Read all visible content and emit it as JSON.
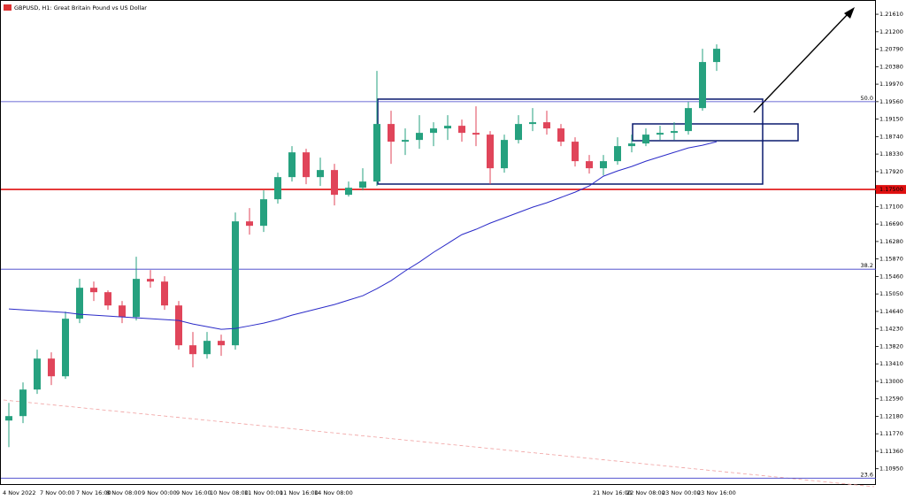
{
  "chart_data": {
    "type": "candlestick",
    "title": "GBPUSD, H1:  Great Britain Pound vs US Dollar",
    "ylim": [
      1.1057,
      1.2184
    ],
    "yticks": [
      {
        "value": 1.2161,
        "label": "1.21610"
      },
      {
        "value": 1.212,
        "label": "1.21200"
      },
      {
        "value": 1.2079,
        "label": "1.20790"
      },
      {
        "value": 1.2038,
        "label": "1.20380"
      },
      {
        "value": 1.1997,
        "label": "1.19970"
      },
      {
        "value": 1.1956,
        "label": "1.19560"
      },
      {
        "value": 1.1915,
        "label": "1.19150"
      },
      {
        "value": 1.1874,
        "label": "1.18740"
      },
      {
        "value": 1.1833,
        "label": "1.18330"
      },
      {
        "value": 1.1792,
        "label": "1.17920"
      },
      {
        "value": 1.171,
        "label": "1.17100"
      },
      {
        "value": 1.1669,
        "label": "1.16690"
      },
      {
        "value": 1.1628,
        "label": "1.16280"
      },
      {
        "value": 1.1587,
        "label": "1.15870"
      },
      {
        "value": 1.1546,
        "label": "1.15460"
      },
      {
        "value": 1.1505,
        "label": "1.15050"
      },
      {
        "value": 1.1464,
        "label": "1.14640"
      },
      {
        "value": 1.1423,
        "label": "1.14230"
      },
      {
        "value": 1.1382,
        "label": "1.13820"
      },
      {
        "value": 1.1341,
        "label": "1.13410"
      },
      {
        "value": 1.13,
        "label": "1.13000"
      },
      {
        "value": 1.1259,
        "label": "1.12590"
      },
      {
        "value": 1.1218,
        "label": "1.12180"
      },
      {
        "value": 1.1177,
        "label": "1.11770"
      },
      {
        "value": 1.1136,
        "label": "1.11360"
      },
      {
        "value": 1.1095,
        "label": "1.10950"
      }
    ],
    "x_labels": [
      "4 Nov 2022",
      "7 Nov 00:00",
      "7 Nov 16:00",
      "8 Nov 08:00",
      "9 Nov 00:00",
      "9 Nov 16:00",
      "10 Nov 08:00",
      "11 Nov 00:00",
      "11 Nov 16:00",
      "14 Nov 08:00",
      "21 Nov 16:00",
      "22 Nov 08:00",
      "23 Nov 00:00",
      "23 Nov 16:00"
    ],
    "up_color": "#26a17f",
    "down_color": "#e0455a",
    "open": [
      1.12081,
      1.12185,
      1.12808,
      1.13534,
      1.13119,
      1.14469,
      1.15195,
      1.15091,
      1.1478,
      1.1451,
      1.15403,
      1.1534,
      1.1478,
      1.13846,
      1.13638,
      1.1395,
      1.13846,
      1.16752,
      1.16648,
      1.17271,
      1.1779,
      1.18371,
      1.1779,
      1.17956,
      1.17375,
      1.17541,
      1.17686,
      1.19036,
      1.18621,
      1.18662,
      1.18828,
      1.18932,
      1.18994,
      1.18828,
      1.18787,
      1.17998,
      1.18662,
      1.19036,
      1.19077,
      1.18932,
      1.18621,
      1.18164,
      1.17998,
      1.18164,
      1.18517,
      1.18579,
      1.18787,
      1.18828,
      1.1887,
      1.19409,
      1.20489
    ],
    "high": [
      1.12496,
      1.12974,
      1.13742,
      1.1368,
      1.14635,
      1.15403,
      1.1534,
      1.15133,
      1.14884,
      1.15922,
      1.1561,
      1.15465,
      1.14884,
      1.14157,
      1.14157,
      1.14095,
      1.1696,
      1.17064,
      1.17479,
      1.17894,
      1.18517,
      1.18454,
      1.18247,
      1.18102,
      1.17686,
      1.17998,
      1.20281,
      1.19347,
      1.18932,
      1.19243,
      1.19077,
      1.19243,
      1.1914,
      1.19451,
      1.1887,
      1.18787,
      1.19243,
      1.19409,
      1.19347,
      1.19036,
      1.18724,
      1.18309,
      1.18309,
      1.18724,
      1.18787,
      1.18932,
      1.18994,
      1.19077,
      1.19555,
      1.208,
      1.20904
    ],
    "low": [
      1.11458,
      1.12019,
      1.12704,
      1.12912,
      1.13057,
      1.14365,
      1.14884,
      1.14676,
      1.14365,
      1.14427,
      1.15195,
      1.14676,
      1.13742,
      1.13327,
      1.13534,
      1.13597,
      1.13742,
      1.16441,
      1.16503,
      1.17167,
      1.17686,
      1.17624,
      1.17583,
      1.17126,
      1.17333,
      1.17479,
      1.17583,
      1.18102,
      1.18309,
      1.18454,
      1.18517,
      1.18662,
      1.18621,
      1.18517,
      1.17624,
      1.17894,
      1.18579,
      1.1887,
      1.18787,
      1.18517,
      1.18039,
      1.17873,
      1.17832,
      1.18081,
      1.18371,
      1.18517,
      1.18662,
      1.18662,
      1.18787,
      1.19347,
      1.20281
    ],
    "close": [
      1.12185,
      1.12808,
      1.13534,
      1.13119,
      1.14469,
      1.15195,
      1.15091,
      1.1478,
      1.1451,
      1.15403,
      1.1534,
      1.1478,
      1.13846,
      1.13638,
      1.1395,
      1.13846,
      1.16752,
      1.16648,
      1.17271,
      1.1779,
      1.18371,
      1.1779,
      1.17956,
      1.17375,
      1.17541,
      1.17686,
      1.19036,
      1.18621,
      1.18662,
      1.18828,
      1.18932,
      1.18994,
      1.18828,
      1.18787,
      1.17998,
      1.18662,
      1.19036,
      1.19077,
      1.18932,
      1.18621,
      1.18164,
      1.17998,
      1.18164,
      1.18517,
      1.18579,
      1.18787,
      1.18828,
      1.1887,
      1.19409,
      1.20489,
      1.208
    ],
    "ma": {
      "color": "#2b2bc8",
      "values": [
        1.14697,
        1.14676,
        1.14655,
        1.14635,
        1.14614,
        1.14572,
        1.14552,
        1.14531,
        1.1451,
        1.14489,
        1.14469,
        1.14448,
        1.14427,
        1.14344,
        1.14282,
        1.1422,
        1.1424,
        1.14302,
        1.14365,
        1.14448,
        1.14552,
        1.14635,
        1.14718,
        1.14801,
        1.14905,
        1.15008,
        1.15174,
        1.15361,
        1.1559,
        1.15797,
        1.16026,
        1.16233,
        1.16441,
        1.16565,
        1.16711,
        1.16835,
        1.1696,
        1.17084,
        1.17188,
        1.17313,
        1.17437,
        1.17583,
        1.17811,
        1.17935,
        1.18039,
        1.18164,
        1.18268,
        1.18371,
        1.18475,
        1.18538,
        1.18621
      ]
    },
    "levels": [
      {
        "value": 1.1956,
        "label": "50.0"
      },
      {
        "value": 1.1563,
        "label": "38.2"
      },
      {
        "value": 1.1073,
        "label": "23.6"
      }
    ],
    "level_color": "#3d3dc8",
    "price_line": {
      "value": 1.175,
      "label": "1.17500",
      "color": "#e01010"
    }
  }
}
